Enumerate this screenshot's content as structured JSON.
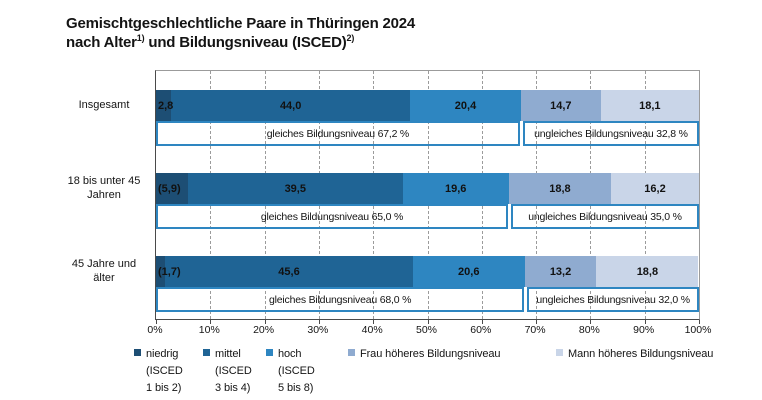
{
  "title": {
    "line1": "Gemischtgeschlechtliche Paare in Thüringen 2024",
    "line2_pre": "nach Alter",
    "footnote1": "1)",
    "line2_mid": " und Bildungsniveau (ISCED)",
    "footnote2": "2)"
  },
  "colors": {
    "niedrig": "#1d4e74",
    "mittel": "#1f6495",
    "hoch": "#2e86c1",
    "frau": "#8fabd0",
    "mann": "#c9d5e8",
    "annotation_border": "#2e86c1",
    "grid": "#9b9b9b",
    "axis": "#4a4a4a"
  },
  "chart_data": {
    "type": "bar",
    "orientation": "horizontal-stacked",
    "title": "Gemischtgeschlechtliche Paare in Thüringen 2024 nach Alter und Bildungsniveau (ISCED)",
    "categories": [
      "Insgesamt",
      "18 bis unter 45 Jahren",
      "45 Jahre und älter"
    ],
    "category_lines": [
      [
        "Insgesamt"
      ],
      [
        "18 bis unter 45",
        "Jahren"
      ],
      [
        "45 Jahre und",
        "älter"
      ]
    ],
    "series": [
      {
        "name": "niedrig (ISCED 1 bis 2)",
        "color_key": "niedrig",
        "values": [
          2.8,
          5.9,
          1.7
        ],
        "value_labels": [
          "2,8",
          "(5,9)",
          "(1,7)"
        ]
      },
      {
        "name": "mittel (ISCED 3 bis 4)",
        "color_key": "mittel",
        "values": [
          44.0,
          39.5,
          45.6
        ],
        "value_labels": [
          "44,0",
          "39,5",
          "45,6"
        ]
      },
      {
        "name": "hoch (ISCED 5 bis 8)",
        "color_key": "hoch",
        "values": [
          20.4,
          19.6,
          20.6
        ],
        "value_labels": [
          "20,4",
          "19,6",
          "20,6"
        ]
      },
      {
        "name": "Frau höheres Bildungsniveau",
        "color_key": "frau",
        "values": [
          14.7,
          18.8,
          13.2
        ],
        "value_labels": [
          "14,7",
          "18,8",
          "13,2"
        ]
      },
      {
        "name": "Mann höheres Bildungsniveau",
        "color_key": "mann",
        "values": [
          18.1,
          16.2,
          18.8
        ],
        "value_labels": [
          "18,1",
          "16,2",
          "18,8"
        ]
      }
    ],
    "row_annotations": [
      {
        "split": 67.2,
        "left_label": "gleiches Bildungsniveau 67,2 %",
        "right_label": "ungleiches Bildungsniveau 32,8 %"
      },
      {
        "split": 65.0,
        "left_label": "gleiches Bildungsniveau 65,0 %",
        "right_label": "ungleiches Bildungsniveau 35,0 %"
      },
      {
        "split": 68.0,
        "left_label": "gleiches Bildungsniveau 68,0 %",
        "right_label": "ungleiches Bildungsniveau 32,0 %"
      }
    ],
    "x_ticks": [
      "0%",
      "10%",
      "20%",
      "30%",
      "40%",
      "50%",
      "60%",
      "70%",
      "80%",
      "90%",
      "100%"
    ],
    "xlim": [
      0,
      100
    ],
    "grid": "dashed-vertical",
    "legend_position": "bottom"
  },
  "legend": {
    "items": [
      {
        "lines": [
          "niedrig",
          "(ISCED",
          "1 bis 2)"
        ],
        "color_key": "niedrig"
      },
      {
        "lines": [
          "mittel",
          "(ISCED",
          "3 bis 4)"
        ],
        "color_key": "mittel"
      },
      {
        "lines": [
          "hoch",
          "(ISCED",
          "5 bis 8)"
        ],
        "color_key": "hoch"
      },
      {
        "lines": [
          "Frau höheres Bildungsniveau"
        ],
        "color_key": "frau"
      },
      {
        "lines": [
          "Mann höheres Bildungsniveau"
        ],
        "color_key": "mann"
      }
    ]
  }
}
